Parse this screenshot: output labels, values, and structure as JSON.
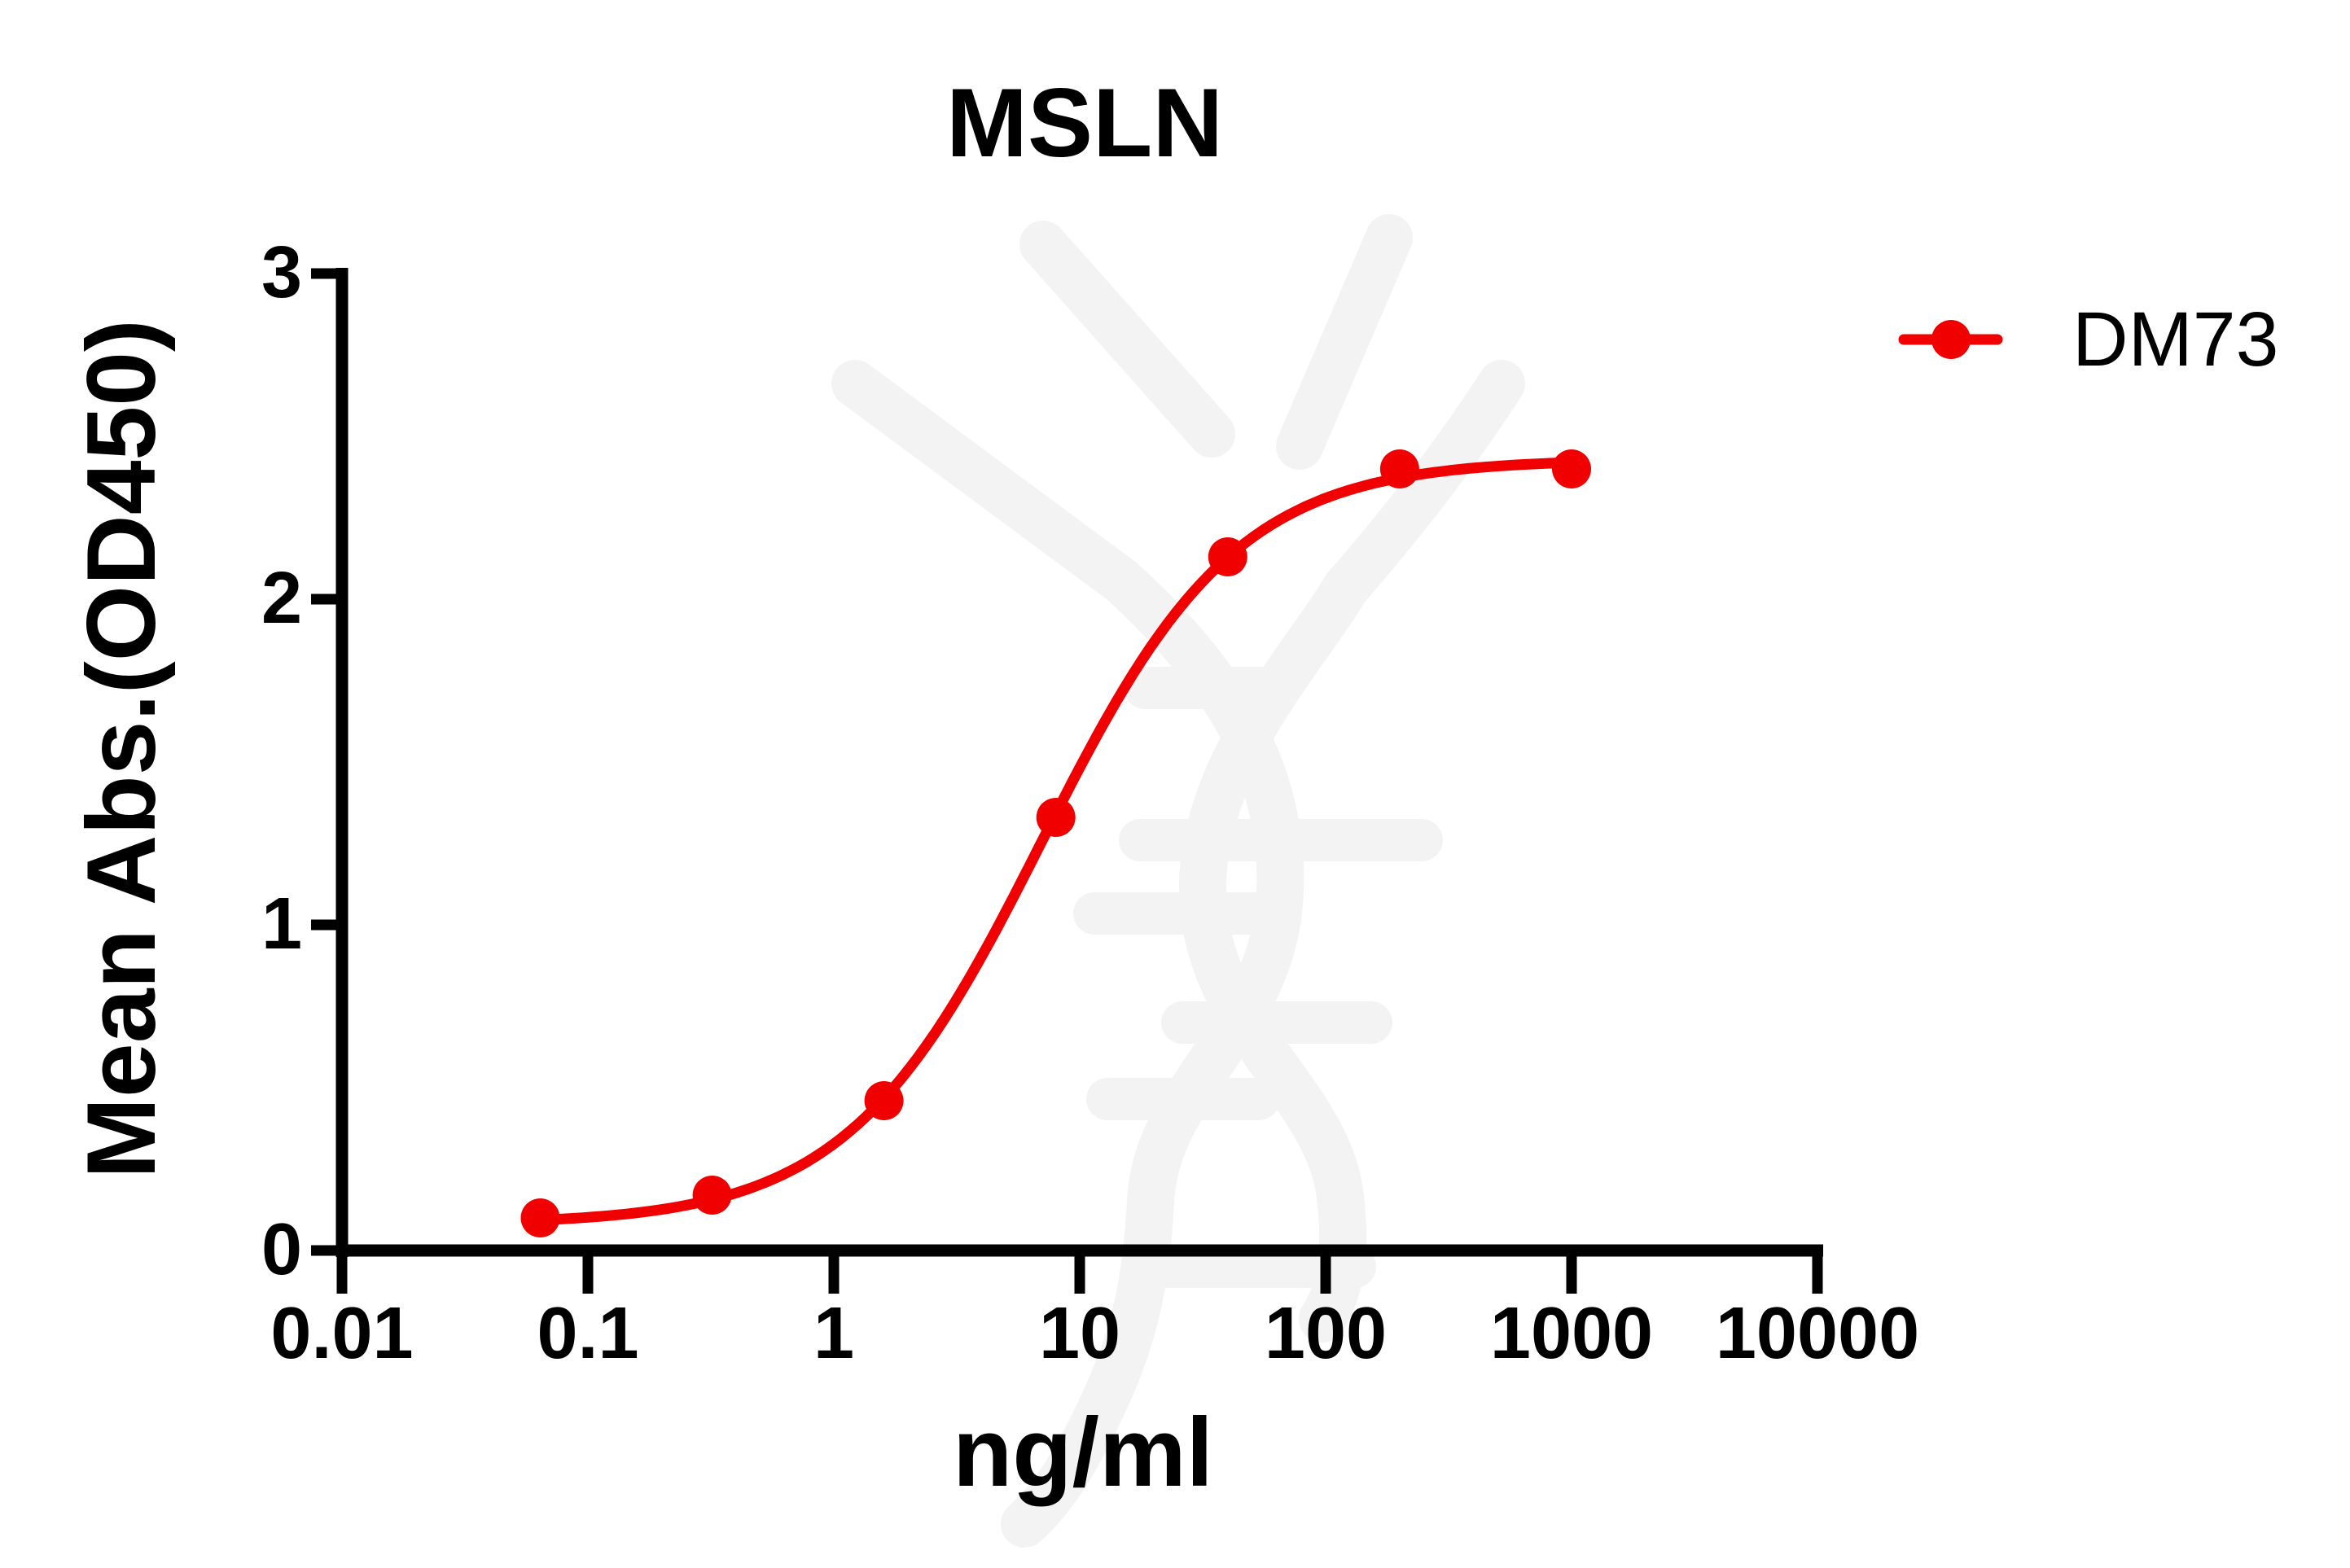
{
  "page": {
    "background": "#FFFFFF"
  },
  "colors": {
    "axis": "#000000",
    "text": "#000000",
    "series": "#F00000",
    "background": "#FFFFFF"
  },
  "watermark": {
    "description": "faint DNA double-helix with antibody Y-arms logo",
    "color": "#F3F3F3"
  },
  "chart_data": {
    "type": "line",
    "title": "MSLN",
    "xlabel": "ng/ml",
    "ylabel": "Mean Abs.(OD450)",
    "x_scale": "log",
    "xlim": [
      0.01,
      10000
    ],
    "ylim": [
      0,
      3
    ],
    "x_ticks": [
      0.01,
      0.1,
      1,
      10,
      100,
      1000,
      10000
    ],
    "x_tick_labels": [
      "0.01",
      "0.1",
      "1",
      "10",
      "100",
      "1000",
      "10000"
    ],
    "y_ticks": [
      0,
      1,
      2,
      3
    ],
    "y_tick_labels": [
      "0",
      "1",
      "2",
      "3"
    ],
    "grid": false,
    "legend": {
      "position": "top-right",
      "entries": [
        {
          "label": "DM73",
          "marker": "filled-circle-on-line",
          "color": "#F00000"
        }
      ]
    },
    "series": [
      {
        "name": "DM73",
        "color": "#F00000",
        "marker": "filled-circle",
        "x": [
          0.064,
          0.32,
          1.6,
          8,
          40,
          200,
          1000
        ],
        "y": [
          0.1,
          0.17,
          0.46,
          1.33,
          2.13,
          2.4,
          2.4
        ],
        "fit_curve": {
          "model": "four-parameter-logistic",
          "bottom": 0.08,
          "top": 2.43,
          "ec50": 7.0,
          "hill": 1.1,
          "x_range": [
            0.064,
            1000
          ]
        }
      }
    ]
  }
}
